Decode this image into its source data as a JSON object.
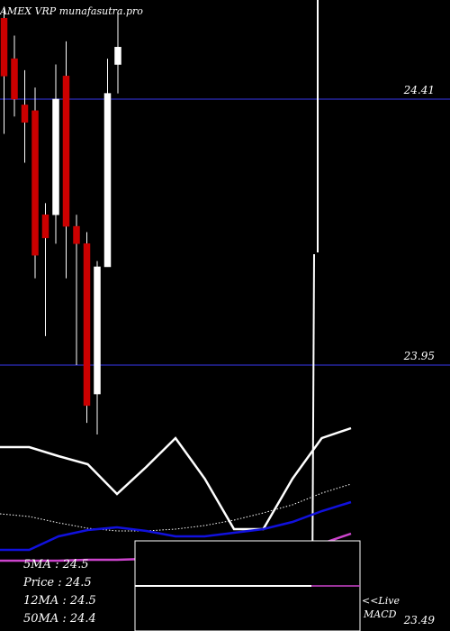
{
  "chart_data": {
    "type": "candlestick",
    "title": "AMEX VRP munafasutra.pro",
    "y_ticks": [
      {
        "value": 24.41,
        "label": "24.41"
      },
      {
        "value": 23.95,
        "label": "23.95"
      },
      {
        "value": 23.49,
        "label": "23.49"
      }
    ],
    "ylim": [
      23.49,
      24.57
    ],
    "candles": [
      {
        "open": 24.55,
        "close": 24.45,
        "high": 24.57,
        "low": 24.35
      },
      {
        "open": 24.48,
        "close": 24.41,
        "high": 24.52,
        "low": 24.38
      },
      {
        "open": 24.4,
        "close": 24.37,
        "high": 24.46,
        "low": 24.3
      },
      {
        "open": 24.39,
        "close": 24.14,
        "high": 24.43,
        "low": 24.1
      },
      {
        "open": 24.21,
        "close": 24.17,
        "high": 24.23,
        "low": 24.0
      },
      {
        "open": 24.21,
        "close": 24.41,
        "high": 24.47,
        "low": 24.16
      },
      {
        "open": 24.45,
        "close": 24.19,
        "high": 24.51,
        "low": 24.1
      },
      {
        "open": 24.19,
        "close": 24.16,
        "high": 24.21,
        "low": 23.95
      },
      {
        "open": 24.16,
        "close": 23.88,
        "high": 24.18,
        "low": 23.85
      },
      {
        "open": 23.9,
        "close": 24.12,
        "high": 24.13,
        "low": 23.83
      },
      {
        "open": 24.12,
        "close": 24.42,
        "high": 24.48,
        "low": 24.12
      },
      {
        "open": 24.47,
        "close": 24.5,
        "high": 24.56,
        "low": 24.42
      }
    ],
    "indicator_lines": [
      {
        "color": "#ffffff",
        "style": "solid",
        "values": [
          0.74,
          0.74,
          0.64,
          0.55,
          0.22,
          0.52,
          0.84,
          0.39,
          -0.17,
          -0.17,
          0.39,
          0.84,
          0.95
        ]
      },
      {
        "color": "#ffffff",
        "style": "dotted",
        "values": [
          0.0,
          -0.03,
          -0.1,
          -0.16,
          -0.19,
          -0.19,
          -0.17,
          -0.13,
          -0.07,
          0.01,
          0.1,
          0.23,
          0.33
        ]
      },
      {
        "color": "#1111dd",
        "style": "solid",
        "values": [
          -0.4,
          -0.4,
          -0.25,
          -0.18,
          -0.15,
          -0.19,
          -0.25,
          -0.25,
          -0.21,
          -0.17,
          -0.09,
          0.03,
          0.13
        ]
      },
      {
        "color": "#cc44cc",
        "style": "solid",
        "values": [
          -0.52,
          -0.52,
          -0.52,
          -0.51,
          -0.51,
          -0.5,
          -0.49,
          -0.48,
          -0.47,
          -0.45,
          -0.42,
          -0.33,
          -0.22
        ]
      }
    ],
    "ma_labels": [
      {
        "name": "5MA",
        "value": "24.5"
      },
      {
        "name": "Price",
        "value": "24.5"
      },
      {
        "name": "12MA",
        "value": "24.5"
      },
      {
        "name": "50MA",
        "value": "24.4"
      }
    ],
    "live_label": "<<Live",
    "macd_label": "MACD"
  }
}
